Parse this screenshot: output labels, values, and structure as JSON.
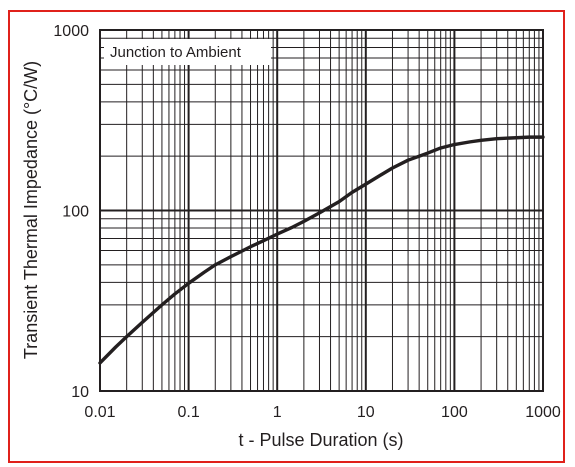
{
  "chart_data": {
    "type": "line",
    "title": "",
    "xlabel": "t - Pulse Duration (s)",
    "ylabel": "Transient Thermal Impedance (°C/W)",
    "annotation": "Junction to Ambient",
    "x_scale": "log",
    "y_scale": "log",
    "xlim": [
      0.01,
      1000
    ],
    "ylim": [
      10,
      1000
    ],
    "x_ticks": [
      "0.01",
      "0.1",
      "1",
      "10",
      "100",
      "1000"
    ],
    "y_ticks": [
      "10",
      "100",
      "1000"
    ],
    "grid": true,
    "series": [
      {
        "name": "",
        "x": [
          0.01,
          0.015,
          0.02,
          0.03,
          0.05,
          0.07,
          0.1,
          0.15,
          0.2,
          0.3,
          0.5,
          0.7,
          1,
          1.5,
          2,
          3,
          5,
          7,
          10,
          15,
          20,
          30,
          50,
          70,
          100,
          150,
          200,
          300,
          500,
          700,
          1000
        ],
        "y": [
          14.3,
          17.5,
          20,
          24,
          30,
          34.5,
          39.5,
          45.5,
          50,
          55.5,
          63,
          68,
          74,
          81,
          87,
          97,
          112,
          126,
          140,
          158,
          172,
          190,
          208,
          222,
          232,
          240,
          245,
          250,
          253,
          255,
          255
        ]
      }
    ]
  },
  "colors": {
    "frame": "#e0211b",
    "axis": "#231f20",
    "grid": "#231f20",
    "curve": "#231f20"
  }
}
